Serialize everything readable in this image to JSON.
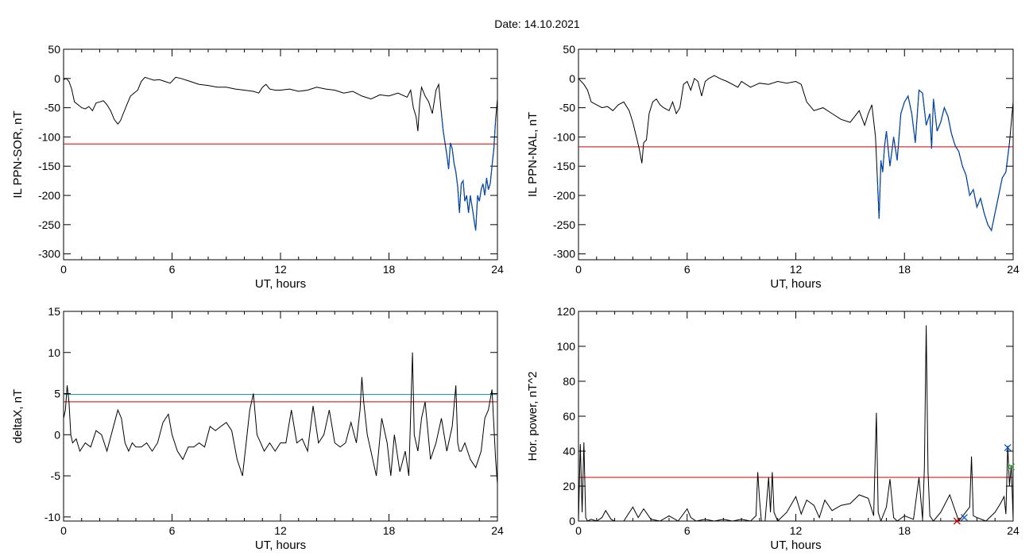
{
  "title": "Date:  14.10.2021",
  "chart_data": [
    {
      "type": "line",
      "panel": "top-left",
      "xlabel": "UT, hours",
      "ylabel": "IL PPN-SOR, nT",
      "xlim": [
        0,
        24
      ],
      "ylim": [
        -310,
        50
      ],
      "xticks": [
        0,
        6,
        12,
        18,
        24
      ],
      "yticks": [
        50,
        0,
        -50,
        -100,
        -150,
        -200,
        -250,
        -300
      ],
      "threshold": -112,
      "threshold_color": "#cc0000",
      "highlight_color": "#0055cc",
      "highlight_range": [
        20.9,
        23.9
      ],
      "series": [
        {
          "x": [
            0,
            0.15,
            0.3,
            0.45,
            0.6,
            0.8,
            1.0,
            1.2,
            1.4,
            1.6,
            1.8,
            2.0,
            2.2,
            2.4,
            2.6,
            2.8,
            3.0,
            3.15,
            3.3,
            3.5,
            3.7,
            3.9,
            4.1,
            4.3,
            4.5,
            4.7,
            5.0,
            5.3,
            5.6,
            5.9,
            6.2,
            6.5,
            7.0,
            7.5,
            8.0,
            8.5,
            9.0,
            9.5,
            10.0,
            10.5,
            10.8,
            11.0,
            11.2,
            11.4,
            11.7,
            12.0,
            12.5,
            13.0,
            13.5,
            14.0,
            14.5,
            15.0,
            15.5,
            16.0,
            16.5,
            17.0,
            17.5,
            18.0,
            18.5,
            19.0,
            19.2,
            19.35,
            19.5,
            19.6,
            19.7,
            19.8,
            20.0,
            20.2,
            20.4,
            20.6,
            20.75,
            20.9,
            21.0,
            21.1,
            21.2,
            21.3,
            21.4,
            21.5,
            21.6,
            21.7,
            21.8,
            21.9,
            22.0,
            22.1,
            22.2,
            22.3,
            22.4,
            22.5,
            22.6,
            22.7,
            22.8,
            22.9,
            23.0,
            23.1,
            23.2,
            23.3,
            23.4,
            23.5,
            23.6,
            23.7,
            23.8,
            23.9,
            24.0
          ],
          "y": [
            -2,
            0,
            -5,
            -18,
            -40,
            -45,
            -50,
            -52,
            -48,
            -55,
            -42,
            -40,
            -38,
            -45,
            -55,
            -70,
            -78,
            -72,
            -60,
            -45,
            -30,
            -25,
            -20,
            -5,
            2,
            0,
            -3,
            -2,
            -5,
            -8,
            2,
            0,
            -5,
            -10,
            -12,
            -15,
            -15,
            -18,
            -20,
            -22,
            -25,
            -15,
            -10,
            -18,
            -20,
            -20,
            -18,
            -22,
            -20,
            -15,
            -18,
            -20,
            -25,
            -22,
            -30,
            -35,
            -28,
            -30,
            -25,
            -32,
            -20,
            -50,
            -65,
            -90,
            -40,
            -15,
            -30,
            -40,
            -60,
            -20,
            -10,
            -60,
            -90,
            -110,
            -130,
            -155,
            -110,
            -120,
            -145,
            -160,
            -185,
            -230,
            -180,
            -175,
            -210,
            -200,
            -230,
            -200,
            -220,
            -240,
            -260,
            -200,
            -210,
            -190,
            -180,
            -200,
            -170,
            -190,
            -180,
            -150,
            -120,
            -70,
            -35
          ]
        }
      ]
    },
    {
      "type": "line",
      "panel": "top-right",
      "xlabel": "UT, hours",
      "ylabel": "IL PPN-NAL, nT",
      "xlim": [
        0,
        24
      ],
      "ylim": [
        -310,
        50
      ],
      "xticks": [
        0,
        6,
        12,
        18,
        24
      ],
      "yticks": [
        50,
        0,
        -50,
        -100,
        -150,
        -200,
        -250,
        -300
      ],
      "threshold": -117,
      "threshold_color": "#cc0000",
      "highlight_color": "#0055cc",
      "highlight_range": [
        16.5,
        23.9
      ],
      "series": [
        {
          "x": [
            0,
            0.15,
            0.3,
            0.5,
            0.7,
            1.0,
            1.3,
            1.6,
            1.9,
            2.2,
            2.5,
            2.8,
            3.0,
            3.2,
            3.35,
            3.5,
            3.6,
            3.75,
            3.9,
            4.1,
            4.3,
            4.5,
            4.7,
            5.0,
            5.2,
            5.4,
            5.6,
            5.8,
            6.0,
            6.2,
            6.4,
            6.6,
            6.8,
            7.0,
            7.2,
            7.5,
            7.8,
            8.2,
            8.5,
            8.8,
            9.0,
            9.5,
            10.0,
            10.5,
            11.0,
            11.5,
            12.0,
            12.3,
            12.6,
            13.0,
            13.5,
            14.0,
            14.5,
            15.0,
            15.5,
            15.8,
            16.0,
            16.2,
            16.4,
            16.5,
            16.6,
            16.7,
            16.8,
            16.9,
            17.0,
            17.2,
            17.4,
            17.6,
            17.8,
            18.0,
            18.2,
            18.4,
            18.6,
            18.8,
            19.0,
            19.2,
            19.4,
            19.5,
            19.6,
            19.8,
            20.0,
            20.2,
            20.4,
            20.6,
            20.8,
            21.0,
            21.2,
            21.4,
            21.6,
            21.8,
            22.0,
            22.2,
            22.4,
            22.6,
            22.8,
            23.0,
            23.2,
            23.4,
            23.6,
            23.8,
            24.0
          ],
          "y": [
            0,
            -5,
            -10,
            -20,
            -40,
            -45,
            -50,
            -48,
            -55,
            -45,
            -40,
            -55,
            -75,
            -100,
            -120,
            -145,
            -110,
            -105,
            -60,
            -40,
            -35,
            -45,
            -50,
            -55,
            -40,
            -60,
            -50,
            -10,
            -5,
            -20,
            0,
            -5,
            -30,
            -5,
            0,
            5,
            0,
            -5,
            -10,
            -15,
            -5,
            -15,
            -8,
            -10,
            -5,
            -8,
            -5,
            -10,
            -40,
            -55,
            -50,
            -60,
            -70,
            -75,
            -55,
            -80,
            -60,
            -45,
            -100,
            -170,
            -240,
            -140,
            -160,
            -115,
            -90,
            -150,
            -100,
            -140,
            -60,
            -40,
            -30,
            -60,
            -110,
            -20,
            -25,
            -80,
            -60,
            -120,
            -35,
            -90,
            -75,
            -50,
            -65,
            -95,
            -115,
            -125,
            -150,
            -165,
            -200,
            -190,
            -220,
            -205,
            -230,
            -250,
            -260,
            -230,
            -200,
            -170,
            -160,
            -110,
            -40
          ]
        }
      ]
    },
    {
      "type": "line",
      "panel": "bottom-left",
      "xlabel": "UT, hours",
      "ylabel": "deltaX, nT",
      "xlim": [
        0,
        24
      ],
      "ylim": [
        -10.5,
        15
      ],
      "xticks": [
        0,
        6,
        12,
        18,
        24
      ],
      "yticks": [
        15,
        10,
        5,
        0,
        -5,
        -10
      ],
      "thresholds": [
        {
          "value": 4.9,
          "color": "#118899"
        },
        {
          "value": 4.0,
          "color": "#cc0000"
        }
      ],
      "series": [
        {
          "x": [
            0,
            0.1,
            0.2,
            0.3,
            0.4,
            0.5,
            0.7,
            0.9,
            1.2,
            1.5,
            1.8,
            2.1,
            2.4,
            2.7,
            3.0,
            3.2,
            3.4,
            3.6,
            3.8,
            4.0,
            4.3,
            4.6,
            4.9,
            5.2,
            5.5,
            5.8,
            6.0,
            6.3,
            6.6,
            6.9,
            7.2,
            7.5,
            7.8,
            8.1,
            8.4,
            8.7,
            9.0,
            9.3,
            9.6,
            9.9,
            10.1,
            10.3,
            10.5,
            10.7,
            10.9,
            11.1,
            11.4,
            11.7,
            12.0,
            12.3,
            12.6,
            12.9,
            13.2,
            13.5,
            13.8,
            14.1,
            14.4,
            14.7,
            15.0,
            15.3,
            15.6,
            15.9,
            16.2,
            16.4,
            16.5,
            16.6,
            16.8,
            17.0,
            17.3,
            17.6,
            17.9,
            18.1,
            18.3,
            18.6,
            18.9,
            19.1,
            19.3,
            19.4,
            19.6,
            19.8,
            20.0,
            20.3,
            20.6,
            20.9,
            21.2,
            21.5,
            21.7,
            21.8,
            21.9,
            22.0,
            22.2,
            22.5,
            22.8,
            23.1,
            23.3,
            23.5,
            23.7,
            23.9,
            24.0
          ],
          "y": [
            2,
            3,
            6,
            4,
            0,
            -1,
            -0.5,
            -2,
            -1,
            -1.5,
            0.5,
            0,
            -2,
            0.5,
            3,
            2,
            -1,
            -2,
            -1,
            -1.5,
            -1.5,
            -1,
            -2,
            -1,
            1.5,
            2.5,
            0,
            -2,
            -3,
            -1.5,
            -1.5,
            -1,
            -1.5,
            1,
            0.5,
            1,
            1.5,
            0.5,
            -3,
            -5,
            -1,
            3,
            5,
            0,
            -1,
            -2,
            -1,
            -2,
            -1,
            -1,
            3,
            -1,
            -0.5,
            -2,
            3.5,
            -1,
            0,
            3,
            -1,
            -1.5,
            -1,
            1.5,
            -1,
            3,
            7,
            4,
            0,
            -2,
            -5,
            2,
            -1,
            -5,
            0,
            -4.5,
            -2,
            -5,
            10,
            0,
            -2,
            2,
            4,
            -3,
            -1,
            2,
            -2,
            1,
            6,
            -1,
            -2,
            -2,
            -1,
            -3,
            -4,
            -2,
            2,
            3,
            5.5,
            -3,
            -6
          ]
        }
      ]
    },
    {
      "type": "line",
      "panel": "bottom-right",
      "xlabel": "UT, hours",
      "ylabel": "Hor. power, nT^2",
      "xlim": [
        0,
        24
      ],
      "ylim": [
        0,
        120
      ],
      "xticks": [
        0,
        6,
        12,
        18,
        24
      ],
      "yticks": [
        120,
        100,
        80,
        60,
        40,
        20,
        0
      ],
      "threshold": 25,
      "threshold_color": "#cc0000",
      "markers": [
        {
          "x": 20.9,
          "y": 0,
          "color": "#cc0000"
        },
        {
          "x": 21.3,
          "y": 2,
          "color": "#0055cc"
        },
        {
          "x": 23.7,
          "y": 42,
          "color": "#0055cc"
        },
        {
          "x": 23.9,
          "y": 31,
          "color": "#33aa33"
        }
      ],
      "series": [
        {
          "x": [
            0,
            0.1,
            0.2,
            0.3,
            0.4,
            0.5,
            0.7,
            1.0,
            1.3,
            1.5,
            1.8,
            2.0,
            2.5,
            3.0,
            3.3,
            3.6,
            4.0,
            4.5,
            5.0,
            5.5,
            6.0,
            6.2,
            6.5,
            7.0,
            7.5,
            8.0,
            8.5,
            9.0,
            9.5,
            9.8,
            9.9,
            10.0,
            10.1,
            10.3,
            10.5,
            10.6,
            10.7,
            10.8,
            11.0,
            11.5,
            12.0,
            12.3,
            12.6,
            13.0,
            13.3,
            13.6,
            14.0,
            14.5,
            15.0,
            15.5,
            16.0,
            16.3,
            16.45,
            16.55,
            16.7,
            17.0,
            17.2,
            17.4,
            17.6,
            18.0,
            18.5,
            18.8,
            19.0,
            19.1,
            19.2,
            19.3,
            19.4,
            19.6,
            20.0,
            20.5,
            21.0,
            21.3,
            21.6,
            21.7,
            21.8,
            22.0,
            22.5,
            23.0,
            23.3,
            23.5,
            23.6,
            23.7,
            23.8,
            23.9,
            24.0
          ],
          "y": [
            0,
            44,
            5,
            45,
            2,
            0,
            1,
            0,
            2,
            6,
            1,
            0,
            0,
            8,
            2,
            7,
            1,
            0,
            3,
            0,
            7,
            2,
            0,
            1,
            0,
            1,
            0,
            1,
            0,
            3,
            28,
            12,
            0,
            0,
            25,
            5,
            28,
            5,
            0,
            5,
            14,
            4,
            12,
            9,
            2,
            12,
            6,
            9,
            10,
            15,
            13,
            3,
            62,
            5,
            0,
            8,
            24,
            2,
            0,
            3,
            1,
            25,
            1,
            30,
            112,
            28,
            3,
            0,
            5,
            15,
            0,
            4,
            8,
            37,
            3,
            2,
            0,
            5,
            10,
            14,
            4,
            43,
            20,
            32,
            1
          ]
        }
      ]
    }
  ]
}
